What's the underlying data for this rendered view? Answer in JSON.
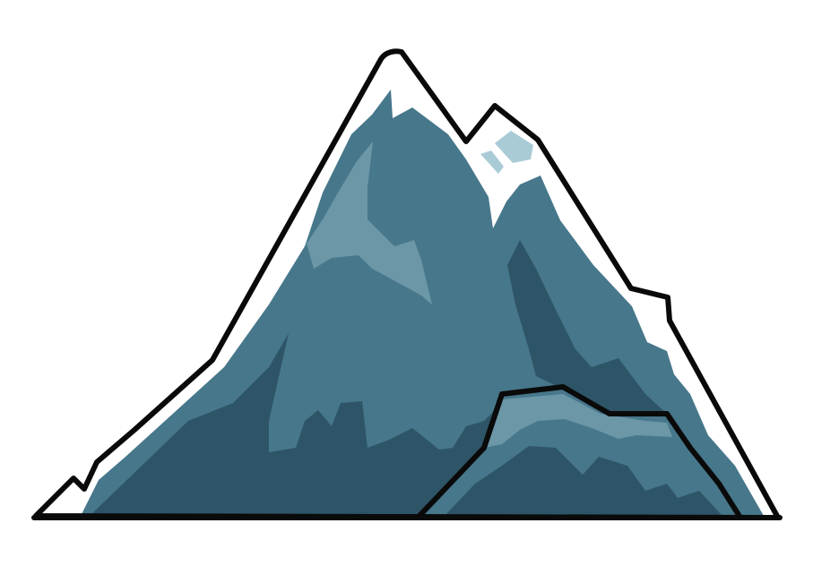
{
  "scene": {
    "subject": "mountain-illustration",
    "colors": {
      "background": "#ffffff",
      "outline": "#0a0a0a",
      "snow": "#ffffff",
      "rock_mid": "#47778b",
      "rock_dark": "#2e5567",
      "rock_light": "#6b97a7",
      "ice": "#a9cbd6"
    }
  }
}
